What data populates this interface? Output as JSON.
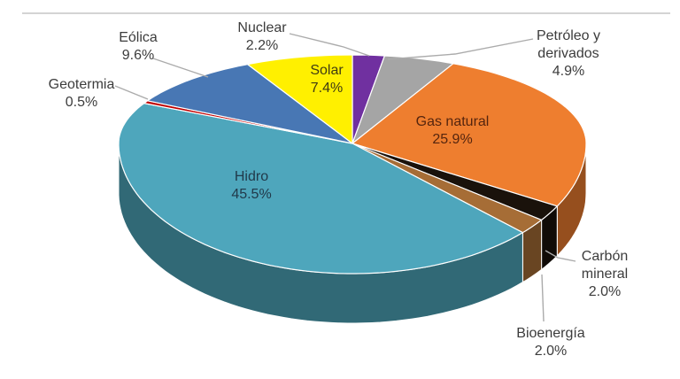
{
  "chart_data": {
    "type": "pie",
    "style": "3d-pie",
    "title": "",
    "unit": "%",
    "total": 100.0,
    "direction": "clockwise",
    "start_angle_deg": 0,
    "slices": [
      {
        "label": "Nuclear",
        "value": 2.2,
        "pct_label": "2.2%",
        "color": "#7030A0",
        "label_lines": [
          "Nuclear"
        ]
      },
      {
        "label": "Petróleo y derivados",
        "value": 4.9,
        "pct_label": "4.9%",
        "color": "#A5A5A5",
        "label_lines": [
          "Petróleo y",
          "derivados"
        ]
      },
      {
        "label": "Gas natural",
        "value": 25.9,
        "pct_label": "25.9%",
        "color": "#EE7E2F",
        "label_lines": [
          "Gas natural"
        ]
      },
      {
        "label": "Carbón mineral",
        "value": 2.0,
        "pct_label": "2.0%",
        "color": "#1A120B",
        "label_lines": [
          "Carbón",
          "mineral"
        ]
      },
      {
        "label": "Bioenergía",
        "value": 2.0,
        "pct_label": "2.0%",
        "color": "#A66D36",
        "label_lines": [
          "Bioenergía"
        ]
      },
      {
        "label": "Hidro",
        "value": 45.5,
        "pct_label": "45.5%",
        "color": "#4EA6BC",
        "label_lines": [
          "Hidro"
        ]
      },
      {
        "label": "Geotermia",
        "value": 0.5,
        "pct_label": "0.5%",
        "color": "#C00000",
        "label_lines": [
          "Geotermia"
        ]
      },
      {
        "label": "Eólica",
        "value": 9.6,
        "pct_label": "9.6%",
        "color": "#4877B4",
        "label_lines": [
          "Eólica"
        ]
      },
      {
        "label": "Solar",
        "value": 7.4,
        "pct_label": "7.4%",
        "color": "#FFF000",
        "label_lines": [
          "Solar"
        ]
      }
    ],
    "legend": "none",
    "labels_style": "category name + percentage, leader lines for small slices",
    "leader_line_color": "#ABABAB"
  }
}
